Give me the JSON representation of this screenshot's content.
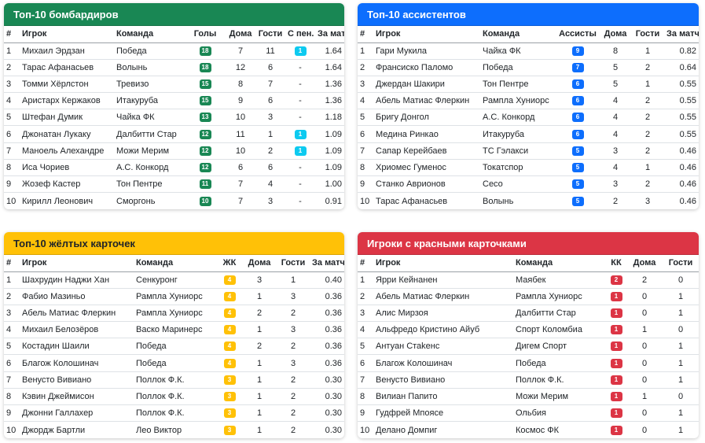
{
  "scorers": {
    "title": "Топ-10 бомбардиров",
    "headers": [
      "#",
      "Игрок",
      "Команда",
      "Голы",
      "Дома",
      "Гости",
      "С пен.",
      "За матч"
    ],
    "rows": [
      {
        "n": "1",
        "player": "Михаил Эрдзан",
        "team": "Победа",
        "val": "18",
        "home": "7",
        "away": "11",
        "pen": "1",
        "avg": "1.64"
      },
      {
        "n": "2",
        "player": "Тарас Афанасьев",
        "team": "Волынь",
        "val": "18",
        "home": "12",
        "away": "6",
        "pen": "-",
        "avg": "1.64"
      },
      {
        "n": "3",
        "player": "Томми Хёрлстон",
        "team": "Тревизо",
        "val": "15",
        "home": "8",
        "away": "7",
        "pen": "-",
        "avg": "1.36"
      },
      {
        "n": "4",
        "player": "Аристарх Кержаков",
        "team": "Итакуруба",
        "val": "15",
        "home": "9",
        "away": "6",
        "pen": "-",
        "avg": "1.36"
      },
      {
        "n": "5",
        "player": "Штефан Думик",
        "team": "Чайка ФК",
        "val": "13",
        "home": "10",
        "away": "3",
        "pen": "-",
        "avg": "1.18"
      },
      {
        "n": "6",
        "player": "Джонатан Лукаку",
        "team": "Далбитти Стар",
        "val": "12",
        "home": "11",
        "away": "1",
        "pen": "1",
        "avg": "1.09"
      },
      {
        "n": "7",
        "player": "Маноель Алехандре",
        "team": "Можи Мерим",
        "val": "12",
        "home": "10",
        "away": "2",
        "pen": "1",
        "avg": "1.09"
      },
      {
        "n": "8",
        "player": "Иса Чориев",
        "team": "А.С. Конкорд",
        "val": "12",
        "home": "6",
        "away": "6",
        "pen": "-",
        "avg": "1.09"
      },
      {
        "n": "9",
        "player": "Жозеф Кастер",
        "team": "Тон Пентре",
        "val": "11",
        "home": "7",
        "away": "4",
        "pen": "-",
        "avg": "1.00"
      },
      {
        "n": "10",
        "player": "Кирилл Леонович",
        "team": "Сморгонь",
        "val": "10",
        "home": "7",
        "away": "3",
        "pen": "-",
        "avg": "0.91"
      }
    ]
  },
  "assists": {
    "title": "Топ-10 ассистентов",
    "headers": [
      "#",
      "Игрок",
      "Команда",
      "Ассисты",
      "Дома",
      "Гости",
      "За матч"
    ],
    "rows": [
      {
        "n": "1",
        "player": "Гари Мукила",
        "team": "Чайка ФК",
        "val": "9",
        "home": "8",
        "away": "1",
        "avg": "0.82"
      },
      {
        "n": "2",
        "player": "Франсиско Паломо",
        "team": "Победа",
        "val": "7",
        "home": "5",
        "away": "2",
        "avg": "0.64"
      },
      {
        "n": "3",
        "player": "Джердан Шакири",
        "team": "Тон Пентре",
        "val": "6",
        "home": "5",
        "away": "1",
        "avg": "0.55"
      },
      {
        "n": "4",
        "player": "Абель Матиас Флеркин",
        "team": "Рампла Хуниорс",
        "val": "6",
        "home": "4",
        "away": "2",
        "avg": "0.55"
      },
      {
        "n": "5",
        "player": "Бригу Донгол",
        "team": "А.С. Конкорд",
        "val": "6",
        "home": "4",
        "away": "2",
        "avg": "0.55"
      },
      {
        "n": "6",
        "player": "Медина Ринкао",
        "team": "Итакуруба",
        "val": "6",
        "home": "4",
        "away": "2",
        "avg": "0.55"
      },
      {
        "n": "7",
        "player": "Сапар Керейбаев",
        "team": "ТС Гэлакси",
        "val": "5",
        "home": "3",
        "away": "2",
        "avg": "0.46"
      },
      {
        "n": "8",
        "player": "Хриомес Гуменос",
        "team": "Токатспор",
        "val": "5",
        "home": "4",
        "away": "1",
        "avg": "0.46"
      },
      {
        "n": "9",
        "player": "Станко Аврионов",
        "team": "Сесо",
        "val": "5",
        "home": "3",
        "away": "2",
        "avg": "0.46"
      },
      {
        "n": "10",
        "player": "Тарас Афанасьев",
        "team": "Волынь",
        "val": "5",
        "home": "2",
        "away": "3",
        "avg": "0.46"
      }
    ]
  },
  "yellow": {
    "title": "Топ-10 жёлтых карточек",
    "headers": [
      "#",
      "Игрок",
      "Команда",
      "ЖК",
      "Дома",
      "Гости",
      "За матч"
    ],
    "rows": [
      {
        "n": "1",
        "player": "Шахрудин Наджи Хан",
        "team": "Сенкуронг",
        "val": "4",
        "home": "3",
        "away": "1",
        "avg": "0.40"
      },
      {
        "n": "2",
        "player": "Фабио Мазиньо",
        "team": "Рампла Хуниорс",
        "val": "4",
        "home": "1",
        "away": "3",
        "avg": "0.36"
      },
      {
        "n": "3",
        "player": "Абель Матиас Флеркин",
        "team": "Рампла Хуниорс",
        "val": "4",
        "home": "2",
        "away": "2",
        "avg": "0.36"
      },
      {
        "n": "4",
        "player": "Михаил Белозёров",
        "team": "Васко Маринерс",
        "val": "4",
        "home": "1",
        "away": "3",
        "avg": "0.36"
      },
      {
        "n": "5",
        "player": "Костадин Шаили",
        "team": "Победа",
        "val": "4",
        "home": "2",
        "away": "2",
        "avg": "0.36"
      },
      {
        "n": "6",
        "player": "Благож Колошинач",
        "team": "Победа",
        "val": "4",
        "home": "1",
        "away": "3",
        "avg": "0.36"
      },
      {
        "n": "7",
        "player": "Венусто Вивиано",
        "team": "Поллок Ф.К.",
        "val": "3",
        "home": "1",
        "away": "2",
        "avg": "0.30"
      },
      {
        "n": "8",
        "player": "Кэвин Джеймисон",
        "team": "Поллок Ф.К.",
        "val": "3",
        "home": "1",
        "away": "2",
        "avg": "0.30"
      },
      {
        "n": "9",
        "player": "Джонни Галлахер",
        "team": "Поллок Ф.К.",
        "val": "3",
        "home": "1",
        "away": "2",
        "avg": "0.30"
      },
      {
        "n": "10",
        "player": "Джордж Бартли",
        "team": "Лео Виктор",
        "val": "3",
        "home": "1",
        "away": "2",
        "avg": "0.30"
      }
    ]
  },
  "red": {
    "title": "Игроки с красными карточками",
    "headers": [
      "#",
      "Игрок",
      "Команда",
      "КК",
      "Дома",
      "Гости"
    ],
    "rows": [
      {
        "n": "1",
        "player": "Ярри Кейнанен",
        "team": "Маябек",
        "val": "2",
        "home": "2",
        "away": "0"
      },
      {
        "n": "2",
        "player": "Абель Матиас Флеркин",
        "team": "Рампла Хуниорс",
        "val": "1",
        "home": "0",
        "away": "1"
      },
      {
        "n": "3",
        "player": "Алис Мирзоя",
        "team": "Далбитти Стар",
        "val": "1",
        "home": "0",
        "away": "1"
      },
      {
        "n": "4",
        "player": "Альфредо Кристино Айуб",
        "team": "Спорт Коломбиа",
        "val": "1",
        "home": "1",
        "away": "0"
      },
      {
        "n": "5",
        "player": "Антуан Стаkенс",
        "team": "Дигем Спорт",
        "val": "1",
        "home": "0",
        "away": "1"
      },
      {
        "n": "6",
        "player": "Благож Колошинач",
        "team": "Победа",
        "val": "1",
        "home": "0",
        "away": "1"
      },
      {
        "n": "7",
        "player": "Венусто Вивиано",
        "team": "Поллок Ф.К.",
        "val": "1",
        "home": "0",
        "away": "1"
      },
      {
        "n": "8",
        "player": "Вилиан Папито",
        "team": "Можи Мерим",
        "val": "1",
        "home": "1",
        "away": "0"
      },
      {
        "n": "9",
        "player": "Гудфрей Мпоясе",
        "team": "Ольбия",
        "val": "1",
        "home": "0",
        "away": "1"
      },
      {
        "n": "10",
        "player": "Делано Домпиг",
        "team": "Космос ФК",
        "val": "1",
        "home": "0",
        "away": "1"
      }
    ]
  },
  "colors": {
    "green": "#198754",
    "blue": "#0d6efd",
    "cyan": "#0dcaf0",
    "yellow": "#ffc107",
    "red": "#dc3545"
  }
}
